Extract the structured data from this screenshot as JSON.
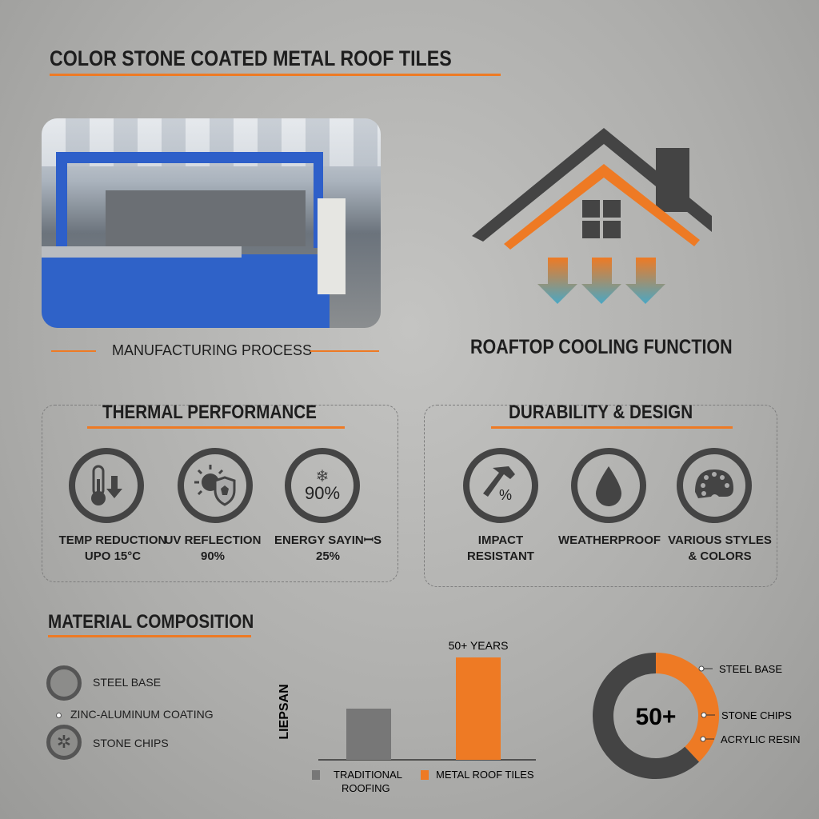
{
  "header": {
    "title": "COLOR STONE COATED METAL ROOF TILES"
  },
  "manufacturing": {
    "caption": "MANUFACTURING PROCESS",
    "image": "factory production line photo"
  },
  "cooling": {
    "caption": "ROAFTOP COOLING FUNCTION",
    "icon": "house-with-cooling-arrows"
  },
  "thermal": {
    "title": "THERMAL PERFORMANCE",
    "items": [
      {
        "icon": "thermometer-down-icon",
        "line1": "TEMP REDUCTION",
        "line2": "UPO 15°C"
      },
      {
        "icon": "sun-shield-icon",
        "line1": "UV REFLECTION",
        "line2": "90%"
      },
      {
        "icon": "snowflake-icon",
        "badge": "90%",
        "line1": "ENERGY SAYINꟷS",
        "line2": "25%"
      }
    ]
  },
  "durability": {
    "title": "DURABILITY & DESIGN",
    "items": [
      {
        "icon": "hammer-icon",
        "line1": "IMPACT",
        "line2": "RESISTANT"
      },
      {
        "icon": "water-drop-icon",
        "line1": "WEATHERPROOF",
        "line2": ""
      },
      {
        "icon": "palette-icon",
        "line1": "VARIOUS STYLES",
        "line2": "& COLORS"
      }
    ]
  },
  "material": {
    "title": "MATERIAL COMPOSITION",
    "items": [
      "STEEL BASE",
      "ZINC-ALUMINUM COATING",
      "STONE CHIPS"
    ]
  },
  "chart_data": [
    {
      "type": "bar",
      "ylabel": "LIEPSAN",
      "categories": [
        "TRADITIONAL ROOFING",
        "METAL ROOF TILES"
      ],
      "values": [
        25,
        50
      ],
      "data_labels": [
        "",
        "50+ YEARS"
      ],
      "colors": [
        "#777777",
        "#ee7a24"
      ],
      "legend": "bottom"
    },
    {
      "type": "pie",
      "center_label": "50+",
      "slices": [
        {
          "value": 38,
          "color": "#ee7a24"
        },
        {
          "value": 62,
          "color": "#444444"
        }
      ],
      "annotations": [
        "STEEL BASE",
        "STONE CHIPS",
        "ACRYLIC RESIN"
      ]
    }
  ],
  "colors": {
    "accent": "#ee7a24",
    "dark": "#444444",
    "cool": "#4aa7c4"
  }
}
